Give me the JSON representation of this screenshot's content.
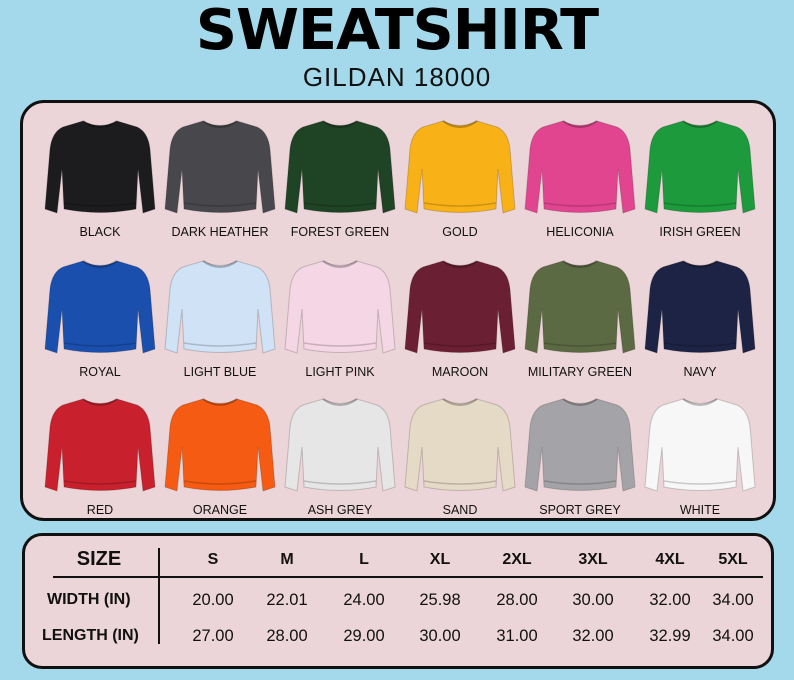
{
  "header": {
    "title": "SWEATSHIRT",
    "subtitle": "GILDAN 18000"
  },
  "colors": [
    {
      "name": "BLACK",
      "hex": "#1c1c1e"
    },
    {
      "name": "DARK HEATHER",
      "hex": "#48484c"
    },
    {
      "name": "FOREST GREEN",
      "hex": "#1f4325"
    },
    {
      "name": "GOLD",
      "hex": "#f8b217"
    },
    {
      "name": "HELICONIA",
      "hex": "#e2458f"
    },
    {
      "name": "IRISH GREEN",
      "hex": "#1c9a3c"
    },
    {
      "name": "ROYAL",
      "hex": "#1a4fae"
    },
    {
      "name": "LIGHT BLUE",
      "hex": "#cfe2f6"
    },
    {
      "name": "LIGHT PINK",
      "hex": "#f5d6e4"
    },
    {
      "name": "MAROON",
      "hex": "#6a1f32"
    },
    {
      "name": "MILITARY GREEN",
      "hex": "#5b6a43"
    },
    {
      "name": "NAVY",
      "hex": "#1d2344"
    },
    {
      "name": "RED",
      "hex": "#c8202c"
    },
    {
      "name": "ORANGE",
      "hex": "#f55b12"
    },
    {
      "name": "ASH GREY",
      "hex": "#e6e6e6"
    },
    {
      "name": "SAND",
      "hex": "#e5dac6"
    },
    {
      "name": "SPORT GREY",
      "hex": "#a4a4a8"
    },
    {
      "name": "WHITE",
      "hex": "#f7f7f7"
    }
  ],
  "size_chart": {
    "header_label": "SIZE",
    "sizes": [
      "S",
      "M",
      "L",
      "XL",
      "2XL",
      "3XL",
      "4XL",
      "5XL"
    ],
    "rows": [
      {
        "label": "WIDTH (IN)",
        "values": [
          "20.00",
          "22.01",
          "24.00",
          "25.98",
          "28.00",
          "30.00",
          "32.00",
          "34.00"
        ]
      },
      {
        "label": "LENGTH (IN)",
        "values": [
          "27.00",
          "28.00",
          "29.00",
          "30.00",
          "31.00",
          "32.00",
          "32.99",
          "34.00"
        ]
      }
    ]
  }
}
